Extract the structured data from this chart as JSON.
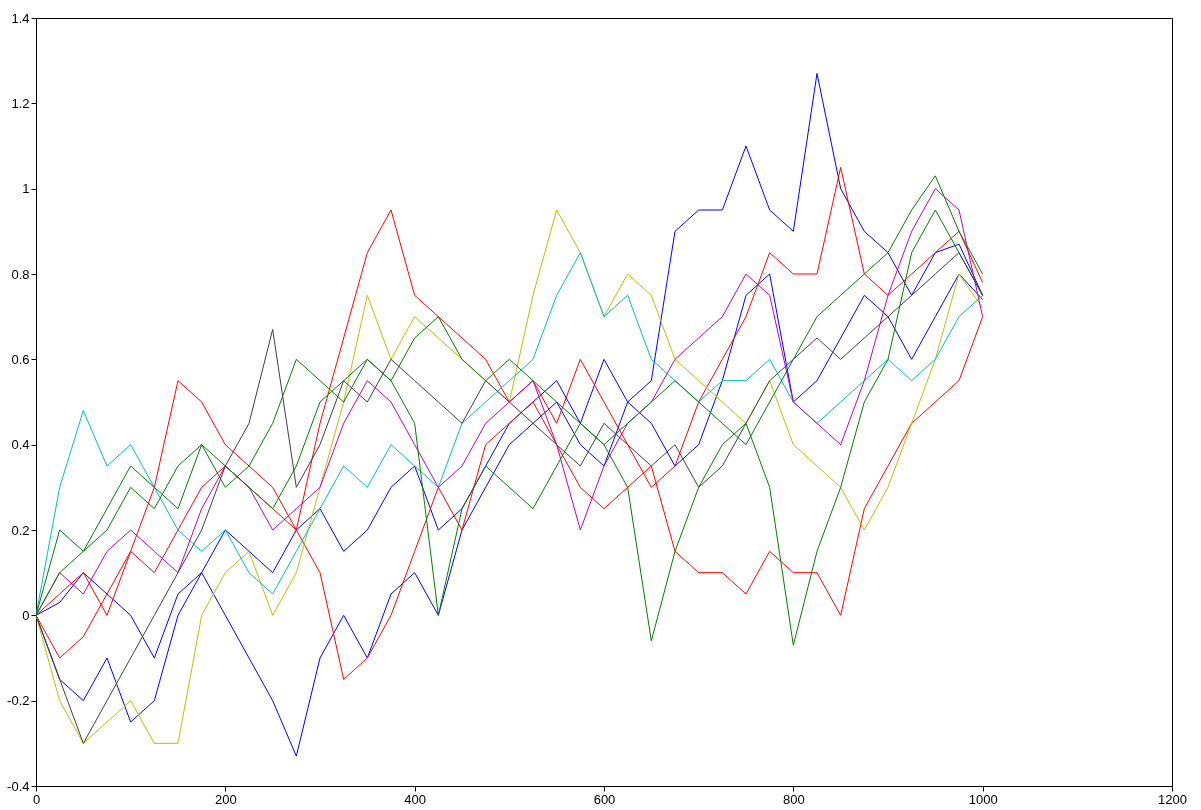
{
  "chart_data": {
    "type": "line",
    "x": [
      0,
      25,
      50,
      75,
      100,
      125,
      150,
      175,
      200,
      225,
      250,
      275,
      300,
      325,
      350,
      375,
      400,
      425,
      450,
      475,
      500,
      525,
      550,
      575,
      600,
      625,
      650,
      675,
      700,
      725,
      750,
      775,
      800,
      825,
      850,
      875,
      900,
      925,
      950,
      975,
      1000
    ],
    "xlim": [
      0,
      1200
    ],
    "xticks": [
      0,
      200,
      400,
      600,
      800,
      1000,
      1200
    ],
    "ylim": [
      -0.4,
      1.4
    ],
    "yticks": [
      -0.4,
      -0.2,
      0,
      0.2,
      0.4,
      0.6,
      0.8,
      1,
      1.2,
      1.4
    ],
    "grid": false,
    "legend": false,
    "series": [
      {
        "color": "#0000ff",
        "values": [
          0,
          0.03,
          0.1,
          0.05,
          0.0,
          -0.1,
          0.05,
          0.1,
          0.2,
          0.15,
          0.1,
          0.2,
          0.25,
          0.15,
          0.2,
          0.3,
          0.35,
          0.2,
          0.25,
          0.35,
          0.45,
          0.5,
          0.55,
          0.45,
          0.6,
          0.5,
          0.55,
          0.9,
          0.95,
          0.95,
          1.1,
          0.95,
          0.9,
          1.27,
          1.0,
          0.9,
          0.85,
          0.75,
          0.85,
          0.87,
          0.75
        ]
      },
      {
        "color": "#0000ff",
        "values": [
          0,
          -0.15,
          -0.2,
          -0.1,
          -0.25,
          -0.2,
          0.0,
          0.1,
          0.0,
          -0.1,
          -0.2,
          -0.33,
          -0.1,
          0.0,
          -0.1,
          0.05,
          0.1,
          0.0,
          0.2,
          0.3,
          0.4,
          0.45,
          0.5,
          0.4,
          0.35,
          0.5,
          0.45,
          0.35,
          0.4,
          0.55,
          0.75,
          0.8,
          0.5,
          0.55,
          0.65,
          0.75,
          0.7,
          0.6,
          0.7,
          0.8,
          0.74
        ]
      },
      {
        "color": "#ff0000",
        "values": [
          0,
          0.05,
          0.1,
          0.0,
          0.15,
          0.3,
          0.55,
          0.5,
          0.4,
          0.35,
          0.3,
          0.2,
          0.45,
          0.65,
          0.85,
          0.95,
          0.75,
          0.7,
          0.65,
          0.6,
          0.5,
          0.55,
          0.45,
          0.6,
          0.5,
          0.4,
          0.3,
          0.35,
          0.5,
          0.6,
          0.7,
          0.85,
          0.8,
          0.8,
          1.05,
          0.8,
          0.75,
          0.8,
          0.85,
          0.9,
          0.78
        ]
      },
      {
        "color": "#ff0000",
        "values": [
          0,
          -0.1,
          -0.05,
          0.05,
          0.15,
          0.1,
          0.2,
          0.3,
          0.35,
          0.3,
          0.25,
          0.2,
          0.1,
          -0.15,
          -0.1,
          0.0,
          0.15,
          0.3,
          0.2,
          0.4,
          0.45,
          0.5,
          0.4,
          0.3,
          0.25,
          0.3,
          0.35,
          0.15,
          0.1,
          0.1,
          0.05,
          0.15,
          0.1,
          0.1,
          0.0,
          0.25,
          0.35,
          0.45,
          0.5,
          0.55,
          0.7
        ]
      },
      {
        "color": "#bfbf00",
        "values": [
          0,
          -0.2,
          -0.3,
          -0.25,
          -0.2,
          -0.3,
          -0.3,
          0.0,
          0.1,
          0.15,
          0.0,
          0.1,
          0.3,
          0.5,
          0.75,
          0.6,
          0.7,
          0.65,
          0.6,
          0.55,
          0.5,
          0.75,
          0.95,
          0.85,
          0.7,
          0.8,
          0.75,
          0.6,
          0.55,
          0.5,
          0.45,
          0.55,
          0.4,
          0.35,
          0.3,
          0.2,
          0.3,
          0.45,
          0.6,
          0.8,
          0.72
        ]
      },
      {
        "color": "#00bfbf",
        "values": [
          0,
          0.3,
          0.48,
          0.35,
          0.4,
          0.3,
          0.2,
          0.15,
          0.2,
          0.1,
          0.05,
          0.15,
          0.25,
          0.35,
          0.3,
          0.4,
          0.35,
          0.3,
          0.45,
          0.5,
          0.55,
          0.6,
          0.75,
          0.85,
          0.7,
          0.75,
          0.6,
          0.55,
          0.5,
          0.55,
          0.55,
          0.6,
          0.5,
          0.45,
          0.5,
          0.55,
          0.6,
          0.55,
          0.6,
          0.7,
          0.75
        ]
      },
      {
        "color": "#bf00bf",
        "values": [
          0,
          0.1,
          0.05,
          0.15,
          0.2,
          0.15,
          0.1,
          0.25,
          0.35,
          0.3,
          0.2,
          0.25,
          0.3,
          0.45,
          0.55,
          0.5,
          0.4,
          0.3,
          0.35,
          0.45,
          0.5,
          0.55,
          0.4,
          0.2,
          0.35,
          0.45,
          0.5,
          0.6,
          0.65,
          0.7,
          0.8,
          0.75,
          0.5,
          0.45,
          0.4,
          0.55,
          0.75,
          0.9,
          1.0,
          0.95,
          0.7
        ]
      },
      {
        "color": "#008000",
        "values": [
          0,
          0.2,
          0.15,
          0.25,
          0.35,
          0.3,
          0.25,
          0.4,
          0.35,
          0.3,
          0.25,
          0.35,
          0.5,
          0.55,
          0.6,
          0.55,
          0.45,
          0.0,
          0.25,
          0.35,
          0.3,
          0.25,
          0.35,
          0.45,
          0.4,
          0.3,
          -0.06,
          0.15,
          0.3,
          0.4,
          0.45,
          0.3,
          -0.07,
          0.15,
          0.3,
          0.5,
          0.6,
          0.85,
          0.95,
          0.85,
          0.75
        ]
      },
      {
        "color": "#008000",
        "values": [
          0,
          0.1,
          0.15,
          0.2,
          0.3,
          0.25,
          0.35,
          0.4,
          0.3,
          0.35,
          0.45,
          0.6,
          0.55,
          0.5,
          0.6,
          0.55,
          0.65,
          0.7,
          0.6,
          0.55,
          0.6,
          0.55,
          0.5,
          0.45,
          0.4,
          0.45,
          0.5,
          0.55,
          0.5,
          0.45,
          0.4,
          0.5,
          0.6,
          0.7,
          0.75,
          0.8,
          0.85,
          0.95,
          1.03,
          0.9,
          0.8
        ]
      },
      {
        "color": "#404040",
        "values": [
          0,
          -0.15,
          -0.3,
          -0.2,
          -0.1,
          0.0,
          0.1,
          0.2,
          0.35,
          0.45,
          0.67,
          0.3,
          0.4,
          0.55,
          0.5,
          0.6,
          0.55,
          0.5,
          0.45,
          0.55,
          0.5,
          0.45,
          0.4,
          0.35,
          0.45,
          0.4,
          0.35,
          0.4,
          0.3,
          0.35,
          0.45,
          0.55,
          0.6,
          0.65,
          0.6,
          0.65,
          0.7,
          0.75,
          0.8,
          0.85,
          0.75
        ]
      }
    ]
  }
}
